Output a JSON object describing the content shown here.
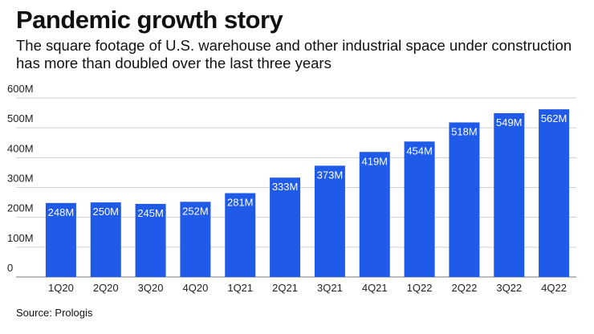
{
  "chart_data": {
    "type": "bar",
    "title": "Pandemic growth story",
    "subtitle": "The square footage of U.S. warehouse and other industrial space under construction has more than doubled over the last three years",
    "categories": [
      "1Q20",
      "2Q20",
      "3Q20",
      "4Q20",
      "1Q21",
      "2Q21",
      "3Q21",
      "4Q21",
      "1Q22",
      "2Q22",
      "3Q22",
      "4Q22"
    ],
    "values": [
      248,
      250,
      245,
      252,
      281,
      333,
      373,
      419,
      454,
      518,
      549,
      562
    ],
    "value_labels": [
      "248M",
      "250M",
      "245M",
      "252M",
      "281M",
      "333M",
      "373M",
      "419M",
      "454M",
      "518M",
      "549M",
      "562M"
    ],
    "y_ticks": [
      {
        "value": 0,
        "label": "0"
      },
      {
        "value": 100,
        "label": "100M"
      },
      {
        "value": 200,
        "label": "200M"
      },
      {
        "value": 300,
        "label": "300M"
      },
      {
        "value": 400,
        "label": "400M"
      },
      {
        "value": 500,
        "label": "500M"
      },
      {
        "value": 600,
        "label": "600M"
      }
    ],
    "ylim": [
      0,
      600
    ],
    "grid": true,
    "bar_color": "#1f5ae8",
    "source": "Source: Prologis"
  }
}
